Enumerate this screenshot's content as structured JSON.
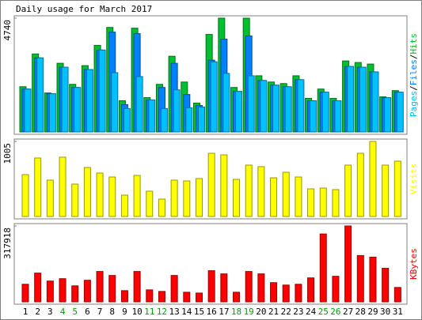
{
  "chart_data": {
    "type": "bar",
    "title": "Daily usage for March 2017",
    "categories": [
      "1",
      "2",
      "3",
      "4",
      "5",
      "6",
      "7",
      "8",
      "9",
      "10",
      "11",
      "12",
      "13",
      "14",
      "15",
      "16",
      "17",
      "18",
      "19",
      "20",
      "21",
      "22",
      "23",
      "24",
      "25",
      "26",
      "27",
      "28",
      "29",
      "30",
      "31"
    ],
    "category_colors": [
      "#000000",
      "#000000",
      "#000000",
      "#00a000",
      "#00a000",
      "#000000",
      "#000000",
      "#000000",
      "#000000",
      "#000000",
      "#00a000",
      "#00a000",
      "#000000",
      "#000000",
      "#000000",
      "#000000",
      "#000000",
      "#00a000",
      "#00a000",
      "#000000",
      "#000000",
      "#000000",
      "#000000",
      "#000000",
      "#00a000",
      "#00a000",
      "#000000",
      "#000000",
      "#000000",
      "#000000",
      "#000000"
    ],
    "legend_separator": "/",
    "panels": [
      {
        "ylim": [
          0,
          4740
        ],
        "yticks": [
          4740
        ],
        "series": [
          {
            "name": "Hits",
            "color": "#00c030",
            "values": [
              1885,
              3250,
              1625,
              2860,
              1983,
              2763,
              3608,
              4355,
              1300,
              4323,
              1430,
              1983,
              3153,
              2080,
              1203,
              4063,
              4740,
              1853,
              4740,
              2340,
              2080,
              2015,
              2340,
              1398,
              1788,
              1398,
              2958,
              2893,
              2828,
              1463,
              1723
            ]
          },
          {
            "name": "Files",
            "color": "#0080ff",
            "values": [
              1788,
              3088,
              1593,
              2698,
              1853,
              2600,
              3413,
              4160,
              1138,
              4095,
              1333,
              1853,
              2860,
              1560,
              1105,
              2990,
              3868,
              1690,
              3998,
              2145,
              1950,
              1885,
              2178,
              1300,
              1658,
              1300,
              2730,
              2698,
              2503,
              1430,
              1658
            ]
          },
          {
            "name": "Pages",
            "color": "#00c0ff",
            "values": [
              1788,
              3088,
              1593,
              2698,
              1853,
              2600,
              3413,
              2470,
              975,
              2308,
              1333,
              975,
              1755,
              1008,
              1040,
              2925,
              2438,
              1690,
              2340,
              2145,
              1950,
              1885,
              2178,
              1300,
              1658,
              1300,
              2730,
              2698,
              2503,
              1430,
              1658
            ]
          }
        ]
      },
      {
        "ylim": [
          0,
          1005
        ],
        "yticks": [
          1005
        ],
        "series": [
          {
            "name": "Visits",
            "color": "#ffff00",
            "values": [
              561,
              783,
              487,
              794,
              434,
              656,
              582,
              529,
              286,
              550,
              339,
              233,
              487,
              476,
              508,
              846,
              825,
              497,
              688,
              667,
              518,
              592,
              529,
              370,
              381,
              360,
              688,
              846,
              1005,
              688,
              741
            ]
          }
        ]
      },
      {
        "ylim": [
          0,
          317918
        ],
        "yticks": [
          317918
        ],
        "series": [
          {
            "name": "KBytes",
            "color": "#ff0000",
            "values": [
              73612,
              120456,
              86996,
              97034,
              66920,
              90342,
              127148,
              110418,
              46844,
              127148,
              50190,
              43498,
              110418,
              40152,
              36806,
              130494,
              117110,
              40152,
              127148,
              117110,
              80304,
              70266,
              73612,
              100380,
              284410,
              107072,
              317918,
              194068,
              187376,
              140532,
              60228
            ]
          }
        ]
      }
    ]
  }
}
